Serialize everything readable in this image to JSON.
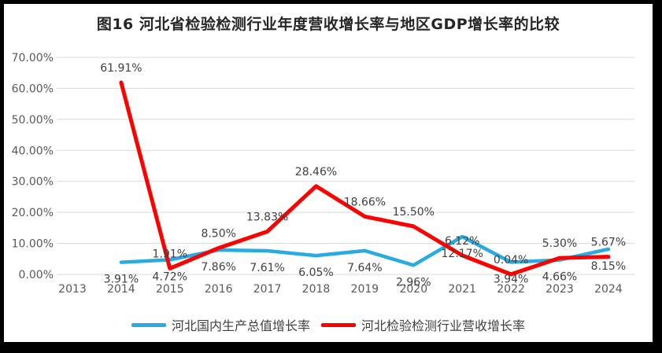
{
  "window": {
    "frame_color": "#000000",
    "background_color": "#ffffff"
  },
  "chart_data": {
    "type": "line",
    "title": "图16 河北省检验检测行业年度营收增长率与地区GDP增长率的比较",
    "categories": [
      "2013",
      "2014",
      "2015",
      "2016",
      "2017",
      "2018",
      "2019",
      "2020",
      "2021",
      "2022",
      "2023",
      "2024"
    ],
    "series": [
      {
        "id": "hebei-gdp-growth",
        "name": "河北国内生产总值增长率",
        "color": "#29ABE2",
        "label_position": "below",
        "values": [
          null,
          3.91,
          4.72,
          7.86,
          7.61,
          6.05,
          7.64,
          2.96,
          12.17,
          3.94,
          4.66,
          8.15
        ]
      },
      {
        "id": "hebei-inspection-revenue-growth",
        "name": "河北检验检测行业营收增长率",
        "color": "#FE0000",
        "label_position": "above",
        "values": [
          null,
          61.91,
          1.91,
          8.5,
          13.83,
          28.46,
          18.66,
          15.5,
          6.12,
          0.04,
          5.3,
          5.67
        ]
      }
    ],
    "y_axis": {
      "min": 0,
      "max": 70,
      "step": 10,
      "tick_labels": [
        "0.00%",
        "10.00%",
        "20.00%",
        "30.00%",
        "40.00%",
        "50.00%",
        "60.00%",
        "70.00%"
      ]
    },
    "value_suffix": "%",
    "value_decimals": 2,
    "grid": true,
    "gridline_color": "#D9D9D9",
    "axis_text_color": "#595959",
    "data_label_color": "#404040",
    "legend_position": "bottom"
  }
}
